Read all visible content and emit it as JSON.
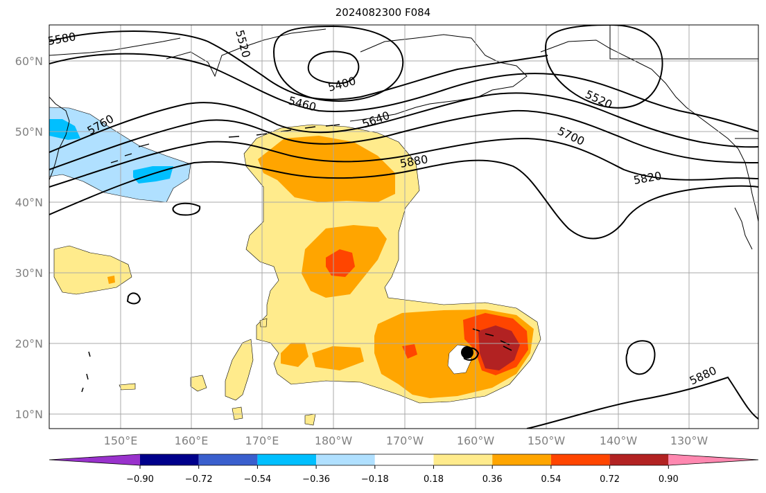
{
  "title": "2024082300 F084",
  "lat_labels": [
    "60°N",
    "50°N",
    "40°N",
    "30°N",
    "20°N",
    "10°N"
  ],
  "lon_labels": [
    "150°E",
    "160°E",
    "170°E",
    "180°W",
    "170°W",
    "160°W",
    "150°W",
    "140°W",
    "130°W"
  ],
  "contour_labels": [
    "5580",
    "5520",
    "5400",
    "5460",
    "5640",
    "5760",
    "5880",
    "5520",
    "5700",
    "5820",
    "5880"
  ],
  "colorbar": {
    "ticks": [
      "−0.90",
      "−0.72",
      "−0.54",
      "−0.36",
      "−0.18",
      "0.18",
      "0.36",
      "0.54",
      "0.72",
      "0.90"
    ],
    "colors": [
      "#9932cc",
      "#00008b",
      "#3a5fcd",
      "#00bfff",
      "#b0e0ff",
      "#ffffff",
      "#ffeb8c",
      "#ffa500",
      "#ff4500",
      "#b22222",
      "#ff88b0"
    ]
  },
  "colors": {
    "land_outline": "#000000",
    "grid": "#a9a9a9",
    "light_yellow": "#ffeb8c",
    "orange": "#ffa500",
    "red_orange": "#ff4500",
    "dark_red": "#b22222",
    "light_blue": "#b0e0ff",
    "deep_sky_blue": "#00bfff"
  }
}
